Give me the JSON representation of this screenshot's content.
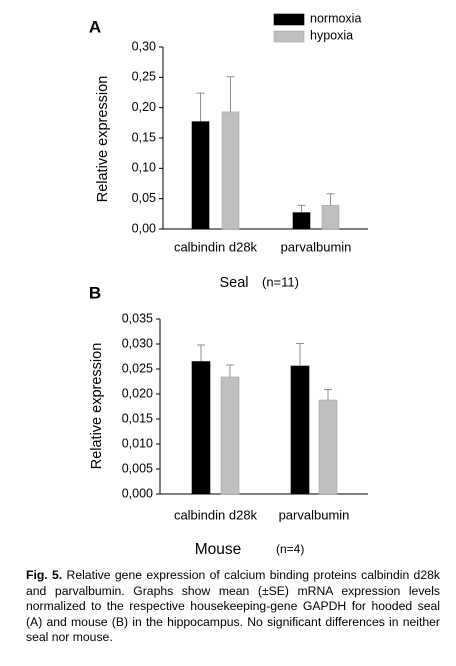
{
  "legend": [
    {
      "label": "normoxia",
      "color": "#000000"
    },
    {
      "label": "hypoxia",
      "color": "#bfbfbf"
    }
  ],
  "chart_data": [
    {
      "type": "bar",
      "panel": "A",
      "categories": [
        "calbindin d28k",
        "parvalbumin"
      ],
      "series": [
        {
          "name": "normoxia",
          "color": "#000000",
          "values": [
            0.177,
            0.027
          ],
          "errors": [
            0.047,
            0.012
          ]
        },
        {
          "name": "hypoxia",
          "color": "#bfbfbf",
          "values": [
            0.193,
            0.039
          ],
          "errors": [
            0.058,
            0.019
          ]
        }
      ],
      "ylabel": "Relative expression",
      "xlabel_main": "Seal",
      "xlabel_sub": "(n=11)",
      "ylim": [
        0,
        0.3
      ],
      "yticks": [
        "0,00",
        "0,05",
        "0,10",
        "0,15",
        "0,20",
        "0,25",
        "0,30"
      ],
      "legend_position": "top-right",
      "grid": false
    },
    {
      "type": "bar",
      "panel": "B",
      "categories": [
        "calbindin d28k",
        "parvalbumin"
      ],
      "series": [
        {
          "name": "normoxia",
          "color": "#000000",
          "values": [
            0.0265,
            0.0256
          ],
          "errors": [
            0.0033,
            0.0045
          ]
        },
        {
          "name": "hypoxia",
          "color": "#bfbfbf",
          "values": [
            0.0234,
            0.0188
          ],
          "errors": [
            0.0024,
            0.0021
          ]
        }
      ],
      "ylabel": "Relative expression",
      "xlabel_main": "Mouse",
      "xlabel_sub": "(n=4)",
      "ylim": [
        0,
        0.035
      ],
      "yticks": [
        "0,000",
        "0,005",
        "0,010",
        "0,015",
        "0,020",
        "0,025",
        "0,030",
        "0,035"
      ],
      "legend_position": "none",
      "grid": false
    }
  ],
  "caption": {
    "label": "Fig. 5.",
    "text": "Relative gene expression of calcium binding proteins calbindin d28k and parvalbumin. Graphs show mean (±SE) mRNA expression levels normalized to the respective housekeeping-gene GAPDH for hooded seal (A) and mouse (B) in the hippocampus. No significant differences in neither seal nor mouse."
  }
}
